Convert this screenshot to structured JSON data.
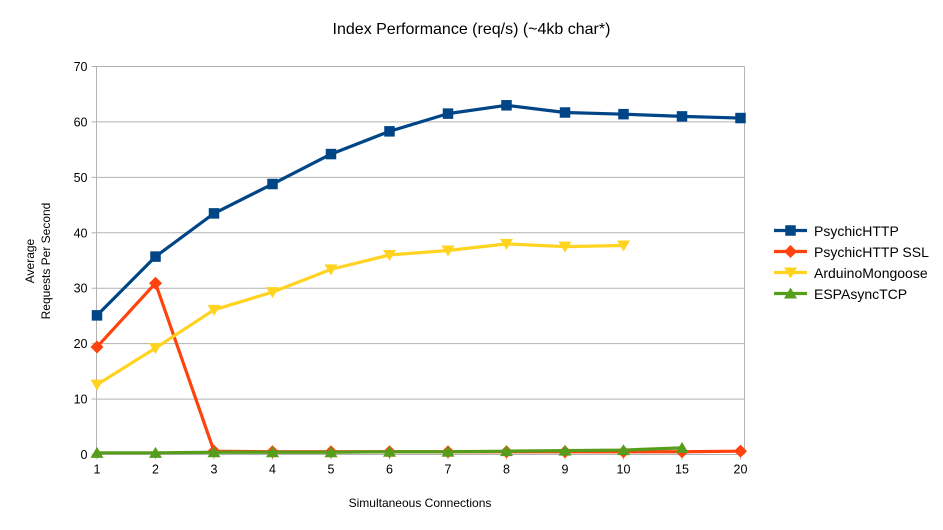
{
  "title": "Index Performance (req/s) (~4kb char*)",
  "colors": {
    "grid": "#b3b3b3",
    "axis": "#b3b3b3",
    "text": "#000000",
    "background": "#ffffff",
    "series_blue": "#004586",
    "series_red": "#ff420e",
    "series_yellow": "#ffd320",
    "series_green": "#579d1c"
  },
  "chart_data": {
    "type": "line",
    "title": "Index Performance (req/s) (~4kb char*)",
    "xlabel": "Simultaneous Connections",
    "ylabel_lines": [
      "Average",
      "Requests Per Second"
    ],
    "x_categories": [
      "1",
      "2",
      "3",
      "4",
      "5",
      "6",
      "7",
      "8",
      "9",
      "10",
      "15",
      "20"
    ],
    "y_ticks": [
      0,
      10,
      20,
      30,
      40,
      50,
      60,
      70
    ],
    "ylim": [
      0,
      70
    ],
    "grid": "horizontal",
    "legend_position": "right",
    "series": [
      {
        "name": "PsychicHTTP",
        "color": "#004586",
        "marker": "square",
        "values": [
          25.1,
          35.7,
          43.5,
          48.8,
          54.2,
          58.3,
          61.5,
          63.0,
          61.7,
          61.4,
          61.0,
          60.7
        ]
      },
      {
        "name": "PsychicHTTP SSL",
        "color": "#ff420e",
        "marker": "diamond",
        "values": [
          19.4,
          30.9,
          0.6,
          0.5,
          0.5,
          0.5,
          0.5,
          0.5,
          0.5,
          0.5,
          0.5,
          0.6
        ]
      },
      {
        "name": "ArduinoMongoose",
        "color": "#ffd320",
        "marker": "triangle-down",
        "values": [
          12.6,
          19.2,
          26.1,
          29.3,
          33.4,
          36.0,
          36.8,
          38.0,
          37.5,
          37.7,
          null,
          null
        ]
      },
      {
        "name": "ESPAsyncTCP",
        "color": "#579d1c",
        "marker": "triangle-up",
        "values": [
          0.3,
          0.3,
          0.4,
          0.4,
          0.4,
          0.5,
          0.5,
          0.6,
          0.7,
          0.8,
          1.2,
          null
        ]
      }
    ]
  }
}
